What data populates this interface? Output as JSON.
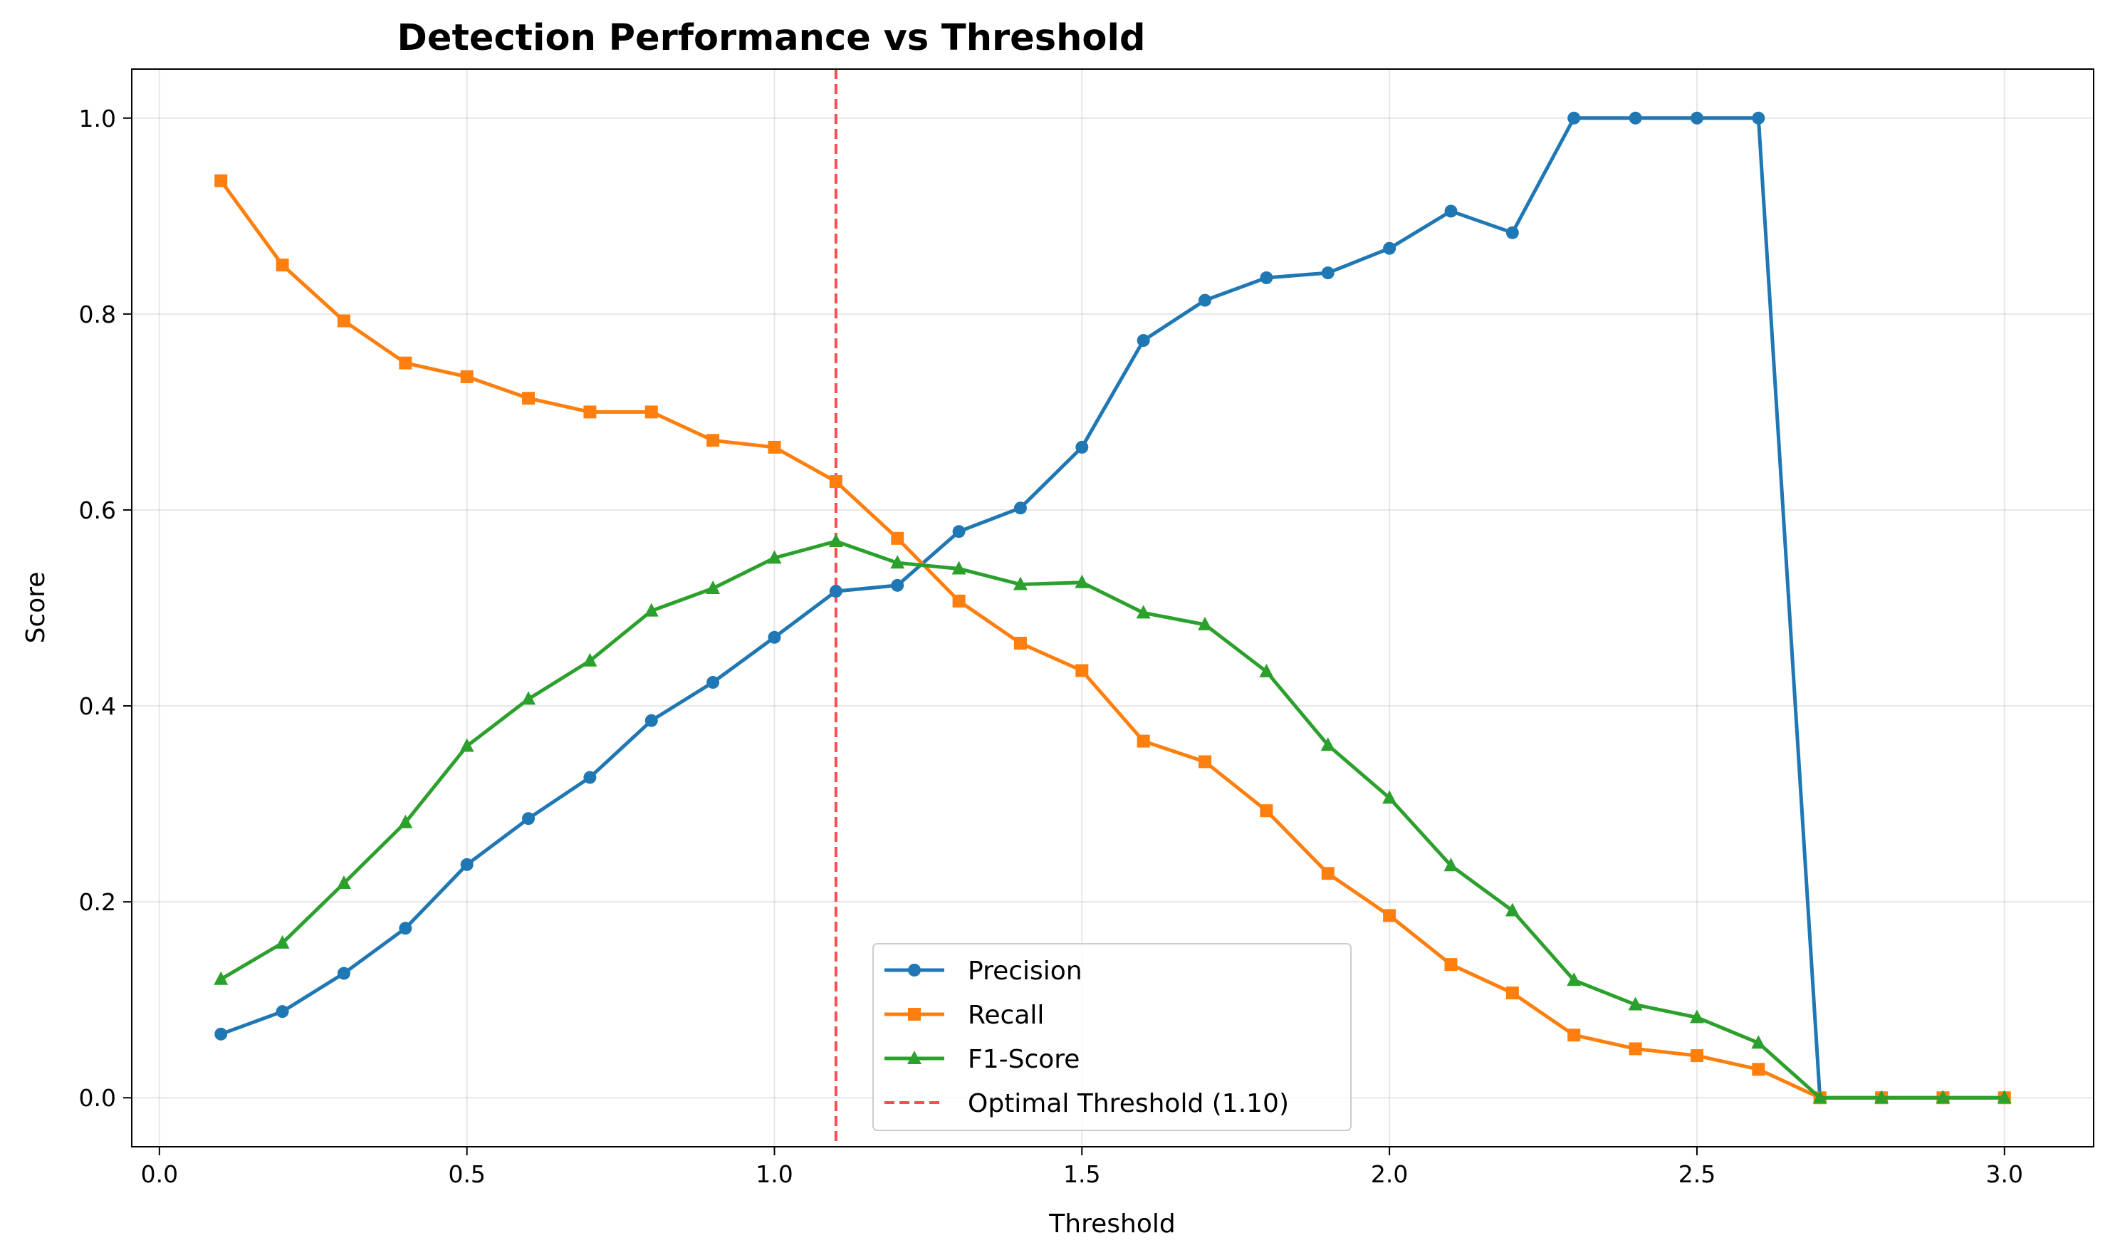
{
  "chart_data": {
    "type": "line",
    "title": "Detection Performance vs Threshold",
    "xlabel": "Threshold",
    "ylabel": "Score",
    "xlim": [
      -0.045,
      3.145
    ],
    "ylim": [
      -0.05,
      1.05
    ],
    "xticks": [
      0.0,
      0.5,
      1.0,
      1.5,
      2.0,
      2.5,
      3.0
    ],
    "xtick_labels": [
      "0.0",
      "0.5",
      "1.0",
      "1.5",
      "2.0",
      "2.5",
      "3.0"
    ],
    "yticks": [
      0.0,
      0.2,
      0.4,
      0.6,
      0.8,
      1.0
    ],
    "ytick_labels": [
      "0.0",
      "0.2",
      "0.4",
      "0.6",
      "0.8",
      "1.0"
    ],
    "grid": true,
    "legend_position": "lower-center",
    "x": [
      0.1,
      0.2,
      0.3,
      0.4,
      0.5,
      0.6,
      0.7,
      0.8,
      0.9,
      1.0,
      1.1,
      1.2,
      1.3,
      1.4,
      1.5,
      1.6,
      1.7,
      1.8,
      1.9,
      2.0,
      2.1,
      2.2,
      2.3,
      2.4,
      2.5,
      2.6,
      2.7,
      2.8,
      2.9,
      3.0
    ],
    "series": [
      {
        "name": "Precision",
        "color": "#1f77b4",
        "marker": "circle",
        "values": [
          0.065,
          0.088,
          0.127,
          0.173,
          0.238,
          0.285,
          0.327,
          0.385,
          0.424,
          0.47,
          0.517,
          0.523,
          0.578,
          0.602,
          0.664,
          0.773,
          0.814,
          0.837,
          0.842,
          0.867,
          0.905,
          0.883,
          1.0,
          1.0,
          1.0,
          1.0,
          0.0,
          0.0,
          0.0,
          0.0
        ]
      },
      {
        "name": "Recall",
        "color": "#ff7f0e",
        "marker": "square",
        "values": [
          0.936,
          0.85,
          0.793,
          0.75,
          0.736,
          0.714,
          0.7,
          0.7,
          0.671,
          0.664,
          0.629,
          0.571,
          0.507,
          0.464,
          0.436,
          0.364,
          0.343,
          0.293,
          0.229,
          0.186,
          0.136,
          0.107,
          0.064,
          0.05,
          0.043,
          0.029,
          0.0,
          0.0,
          0.0,
          0.0
        ]
      },
      {
        "name": "F1-Score",
        "color": "#2ca02c",
        "marker": "triangle",
        "values": [
          0.121,
          0.158,
          0.219,
          0.281,
          0.359,
          0.407,
          0.446,
          0.497,
          0.52,
          0.551,
          0.568,
          0.546,
          0.54,
          0.524,
          0.526,
          0.495,
          0.483,
          0.435,
          0.36,
          0.306,
          0.237,
          0.191,
          0.12,
          0.095,
          0.082,
          0.056,
          0.0,
          0.0,
          0.0,
          0.0
        ]
      }
    ],
    "reference_line": {
      "name": "Optimal Threshold (1.10)",
      "x": 1.1,
      "color": "#ff4d4d",
      "style": "dashed"
    }
  }
}
